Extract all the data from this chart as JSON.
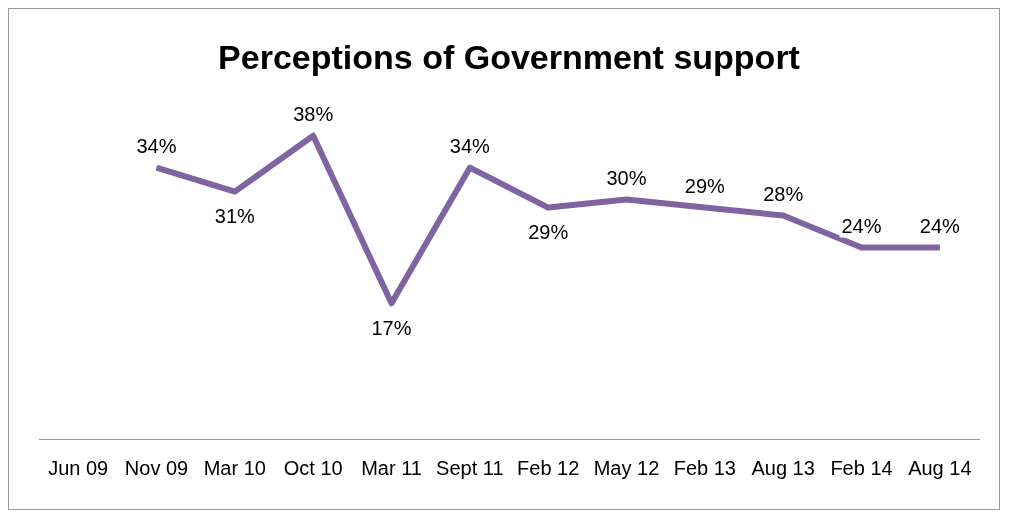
{
  "chart_data": {
    "type": "line",
    "title": "Perceptions of Government support",
    "categories": [
      "Jun 09",
      "Nov 09",
      "Mar 10",
      "Oct 10",
      "Mar 11",
      "Sept 11",
      "Feb 12",
      "May 12",
      "Feb 13",
      "Aug 13",
      "Feb 14",
      "Aug 14"
    ],
    "values": [
      null,
      34,
      31,
      38,
      17,
      34,
      29,
      30,
      29,
      28,
      24,
      24
    ],
    "value_labels": [
      null,
      "34%",
      "31%",
      "38%",
      "17%",
      "34%",
      "29%",
      "30%",
      "29%",
      "28%",
      "24%",
      "24%"
    ],
    "color": "#8064a2",
    "tick_labels": "x",
    "grid": false,
    "legend": false,
    "marker": "none"
  }
}
